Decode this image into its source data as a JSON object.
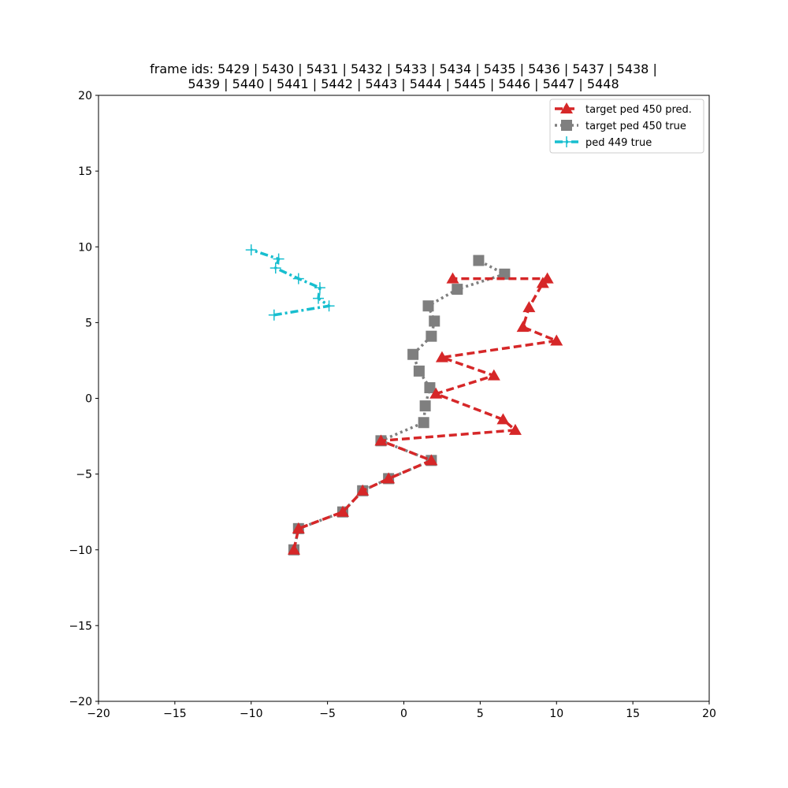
{
  "chart_data": {
    "type": "line",
    "title_lines": [
      "frame ids: 5429 | 5430 | 5431 | 5432 | 5433 | 5434 | 5435 | 5436 | 5437 | 5438 |",
      "5439 | 5440 | 5441 | 5442 | 5443 | 5444 | 5445 | 5446 | 5447 | 5448"
    ],
    "xlabel": "",
    "ylabel": "",
    "xlim": [
      -20,
      20
    ],
    "ylim": [
      -20,
      20
    ],
    "xticks": [
      -20,
      -15,
      -10,
      -5,
      0,
      5,
      10,
      15,
      20
    ],
    "yticks": [
      -20,
      -15,
      -10,
      -5,
      0,
      5,
      10,
      15,
      20
    ],
    "grid": false,
    "legend_position": "top-right",
    "series": [
      {
        "name": "target ped 450 pred.",
        "color": "#d62728",
        "line_style": "dashed",
        "marker": "triangle",
        "points": [
          [
            -7.2,
            -10.0
          ],
          [
            -6.9,
            -8.6
          ],
          [
            -4.0,
            -7.5
          ],
          [
            -2.7,
            -6.1
          ],
          [
            -1.0,
            -5.3
          ],
          [
            1.8,
            -4.1
          ],
          [
            -1.5,
            -2.8
          ],
          [
            7.3,
            -2.1
          ],
          [
            6.5,
            -1.4
          ],
          [
            2.1,
            0.3
          ],
          [
            5.9,
            1.5
          ],
          [
            2.5,
            2.7
          ],
          [
            10.0,
            3.8
          ],
          [
            7.8,
            4.7
          ],
          [
            8.2,
            6.0
          ],
          [
            9.1,
            7.6
          ],
          [
            9.4,
            7.9
          ],
          [
            3.2,
            7.9
          ]
        ]
      },
      {
        "name": "target ped 450 true",
        "color": "#7f7f7f",
        "line_style": "dotted",
        "marker": "square",
        "points": [
          [
            -7.2,
            -10.0
          ],
          [
            -6.9,
            -8.6
          ],
          [
            -4.0,
            -7.5
          ],
          [
            -2.7,
            -6.1
          ],
          [
            -1.0,
            -5.3
          ],
          [
            1.8,
            -4.1
          ],
          [
            -1.5,
            -2.8
          ],
          [
            1.3,
            -1.6
          ],
          [
            1.4,
            -0.5
          ],
          [
            1.7,
            0.7
          ],
          [
            1.0,
            1.8
          ],
          [
            0.6,
            2.9
          ],
          [
            1.8,
            4.1
          ],
          [
            2.0,
            5.1
          ],
          [
            1.6,
            6.1
          ],
          [
            3.5,
            7.2
          ],
          [
            6.6,
            8.2
          ],
          [
            4.9,
            9.1
          ]
        ]
      },
      {
        "name": "ped 449 true",
        "color": "#17becf",
        "line_style": "dashdot",
        "marker": "plus",
        "points": [
          [
            -8.5,
            5.5
          ],
          [
            -4.9,
            6.1
          ],
          [
            -5.6,
            6.6
          ],
          [
            -5.5,
            7.3
          ],
          [
            -6.9,
            7.9
          ],
          [
            -8.4,
            8.6
          ],
          [
            -8.2,
            9.2
          ],
          [
            -10.0,
            9.8
          ]
        ]
      }
    ]
  }
}
